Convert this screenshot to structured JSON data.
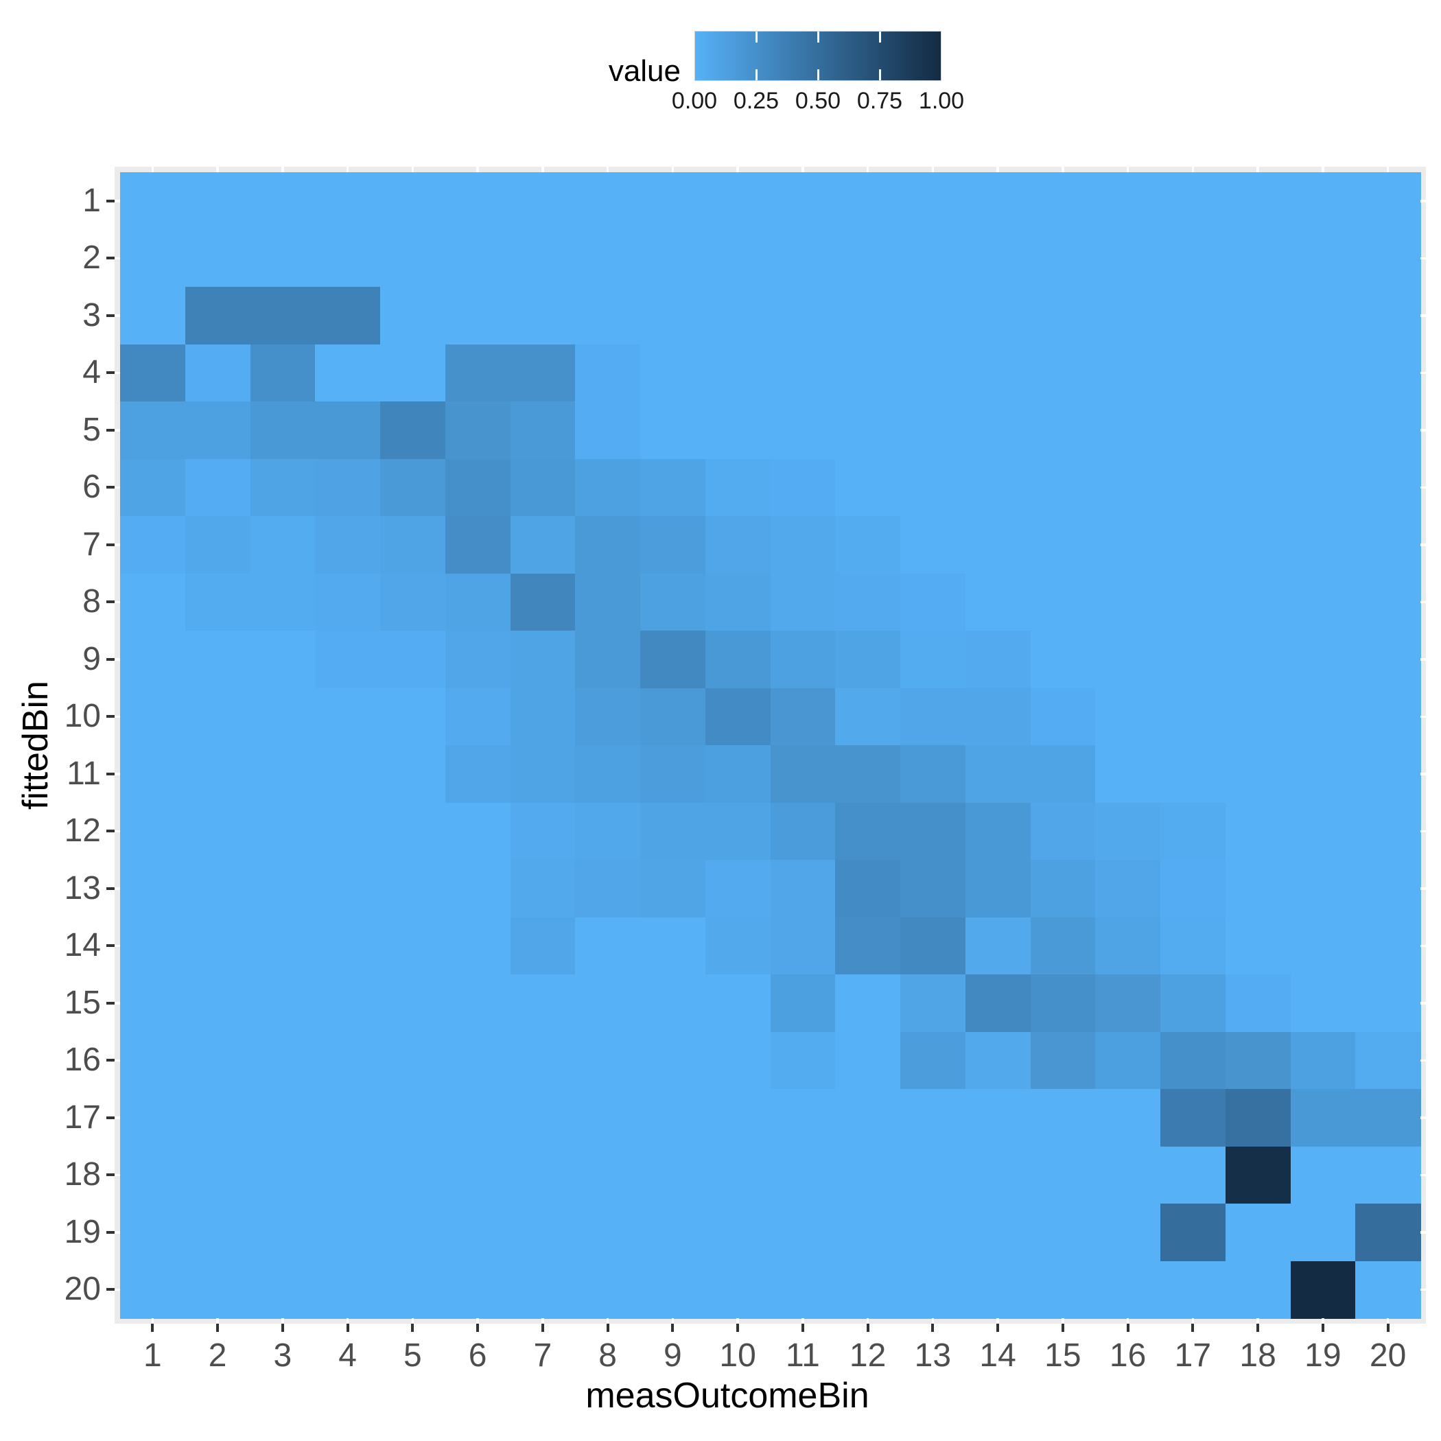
{
  "chart_data": {
    "type": "heatmap",
    "title": "",
    "xlabel": "measOutcomeBin",
    "ylabel": "fittedBin",
    "x_categories": [
      "1",
      "2",
      "3",
      "4",
      "5",
      "6",
      "7",
      "8",
      "9",
      "10",
      "11",
      "12",
      "13",
      "14",
      "15",
      "16",
      "17",
      "18",
      "19",
      "20"
    ],
    "y_categories": [
      "1",
      "2",
      "3",
      "4",
      "5",
      "6",
      "7",
      "8",
      "9",
      "10",
      "11",
      "12",
      "13",
      "14",
      "15",
      "16",
      "17",
      "18",
      "19",
      "20"
    ],
    "value_range": [
      0,
      1
    ],
    "legend": {
      "title": "value",
      "tick_labels": [
        "0.00",
        "0.25",
        "0.50",
        "0.75",
        "1.00"
      ],
      "tick_values": [
        0,
        0.25,
        0.5,
        0.75,
        1.0
      ],
      "color_low": "#56B1F7",
      "color_high": "#132B43"
    },
    "layout": {
      "panel_background": "#EBEBEB",
      "grid_color": "#FFFFFF",
      "axis_tick_color": "#333333",
      "tick_label_color": "#4D4D4D",
      "legend_position": "top",
      "grid": "minor-dashes-at-panel-margins"
    },
    "matrix": [
      [
        0,
        0,
        0,
        0,
        0,
        0,
        0,
        0,
        0,
        0,
        0,
        0,
        0,
        0,
        0,
        0,
        0,
        0,
        0,
        0
      ],
      [
        0,
        0,
        0,
        0,
        0,
        0,
        0,
        0,
        0,
        0,
        0,
        0,
        0,
        0,
        0,
        0,
        0,
        0,
        0,
        0
      ],
      [
        0,
        0.35,
        0.35,
        0.35,
        0,
        0,
        0,
        0,
        0,
        0,
        0,
        0,
        0,
        0,
        0,
        0,
        0,
        0,
        0,
        0
      ],
      [
        0.3,
        0.03,
        0.25,
        0,
        0,
        0.24,
        0.24,
        0.03,
        0,
        0,
        0,
        0,
        0,
        0,
        0,
        0,
        0,
        0,
        0,
        0
      ],
      [
        0.12,
        0.12,
        0.18,
        0.18,
        0.33,
        0.22,
        0.17,
        0.03,
        0,
        0,
        0,
        0,
        0,
        0,
        0,
        0,
        0,
        0,
        0,
        0
      ],
      [
        0.1,
        0.03,
        0.1,
        0.11,
        0.17,
        0.25,
        0.18,
        0.12,
        0.1,
        0.04,
        0.03,
        0,
        0,
        0,
        0,
        0,
        0,
        0,
        0,
        0
      ],
      [
        0.03,
        0.07,
        0.04,
        0.08,
        0.1,
        0.27,
        0.1,
        0.17,
        0.15,
        0.08,
        0.06,
        0.04,
        0,
        0,
        0,
        0,
        0,
        0,
        0,
        0
      ],
      [
        0,
        0.04,
        0.04,
        0.05,
        0.08,
        0.1,
        0.32,
        0.17,
        0.12,
        0.1,
        0.06,
        0.05,
        0.03,
        0,
        0,
        0,
        0,
        0,
        0,
        0
      ],
      [
        0,
        0,
        0,
        0.03,
        0.03,
        0.08,
        0.1,
        0.17,
        0.3,
        0.18,
        0.12,
        0.1,
        0.04,
        0.05,
        0,
        0,
        0,
        0,
        0,
        0
      ],
      [
        0,
        0,
        0,
        0,
        0,
        0.05,
        0.1,
        0.15,
        0.17,
        0.28,
        0.2,
        0.06,
        0.08,
        0.08,
        0.03,
        0,
        0,
        0,
        0,
        0
      ],
      [
        0,
        0,
        0,
        0,
        0,
        0.08,
        0.1,
        0.12,
        0.15,
        0.13,
        0.22,
        0.22,
        0.17,
        0.1,
        0.1,
        0,
        0,
        0,
        0,
        0
      ],
      [
        0,
        0,
        0,
        0,
        0,
        0,
        0.05,
        0.07,
        0.1,
        0.1,
        0.16,
        0.25,
        0.25,
        0.18,
        0.08,
        0.06,
        0.04,
        0,
        0,
        0
      ],
      [
        0,
        0,
        0,
        0,
        0,
        0,
        0.06,
        0.08,
        0.09,
        0.05,
        0.08,
        0.28,
        0.25,
        0.18,
        0.12,
        0.08,
        0.03,
        0,
        0,
        0
      ],
      [
        0,
        0,
        0,
        0,
        0,
        0,
        0.08,
        0,
        0,
        0.06,
        0.08,
        0.27,
        0.3,
        0.06,
        0.17,
        0.1,
        0.04,
        0,
        0,
        0
      ],
      [
        0,
        0,
        0,
        0,
        0,
        0,
        0,
        0,
        0,
        0,
        0.13,
        0,
        0.09,
        0.3,
        0.25,
        0.2,
        0.12,
        0.03,
        0,
        0
      ],
      [
        0,
        0,
        0,
        0,
        0,
        0,
        0,
        0,
        0,
        0,
        0.04,
        0,
        0.15,
        0.06,
        0.2,
        0.13,
        0.25,
        0.22,
        0.12,
        0.04
      ],
      [
        0,
        0,
        0,
        0,
        0,
        0,
        0,
        0,
        0,
        0,
        0,
        0,
        0,
        0,
        0,
        0,
        0.4,
        0.48,
        0.18,
        0.18
      ],
      [
        0,
        0,
        0,
        0,
        0,
        0,
        0,
        0,
        0,
        0,
        0,
        0,
        0,
        0,
        0,
        0,
        0,
        0.97,
        0,
        0
      ],
      [
        0,
        0,
        0,
        0,
        0,
        0,
        0,
        0,
        0,
        0,
        0,
        0,
        0,
        0,
        0,
        0,
        0.5,
        0,
        0,
        0.5
      ],
      [
        0,
        0,
        0,
        0,
        0,
        0,
        0,
        0,
        0,
        0,
        0,
        0,
        0,
        0,
        0,
        0,
        0,
        0,
        1.0,
        0
      ]
    ]
  }
}
